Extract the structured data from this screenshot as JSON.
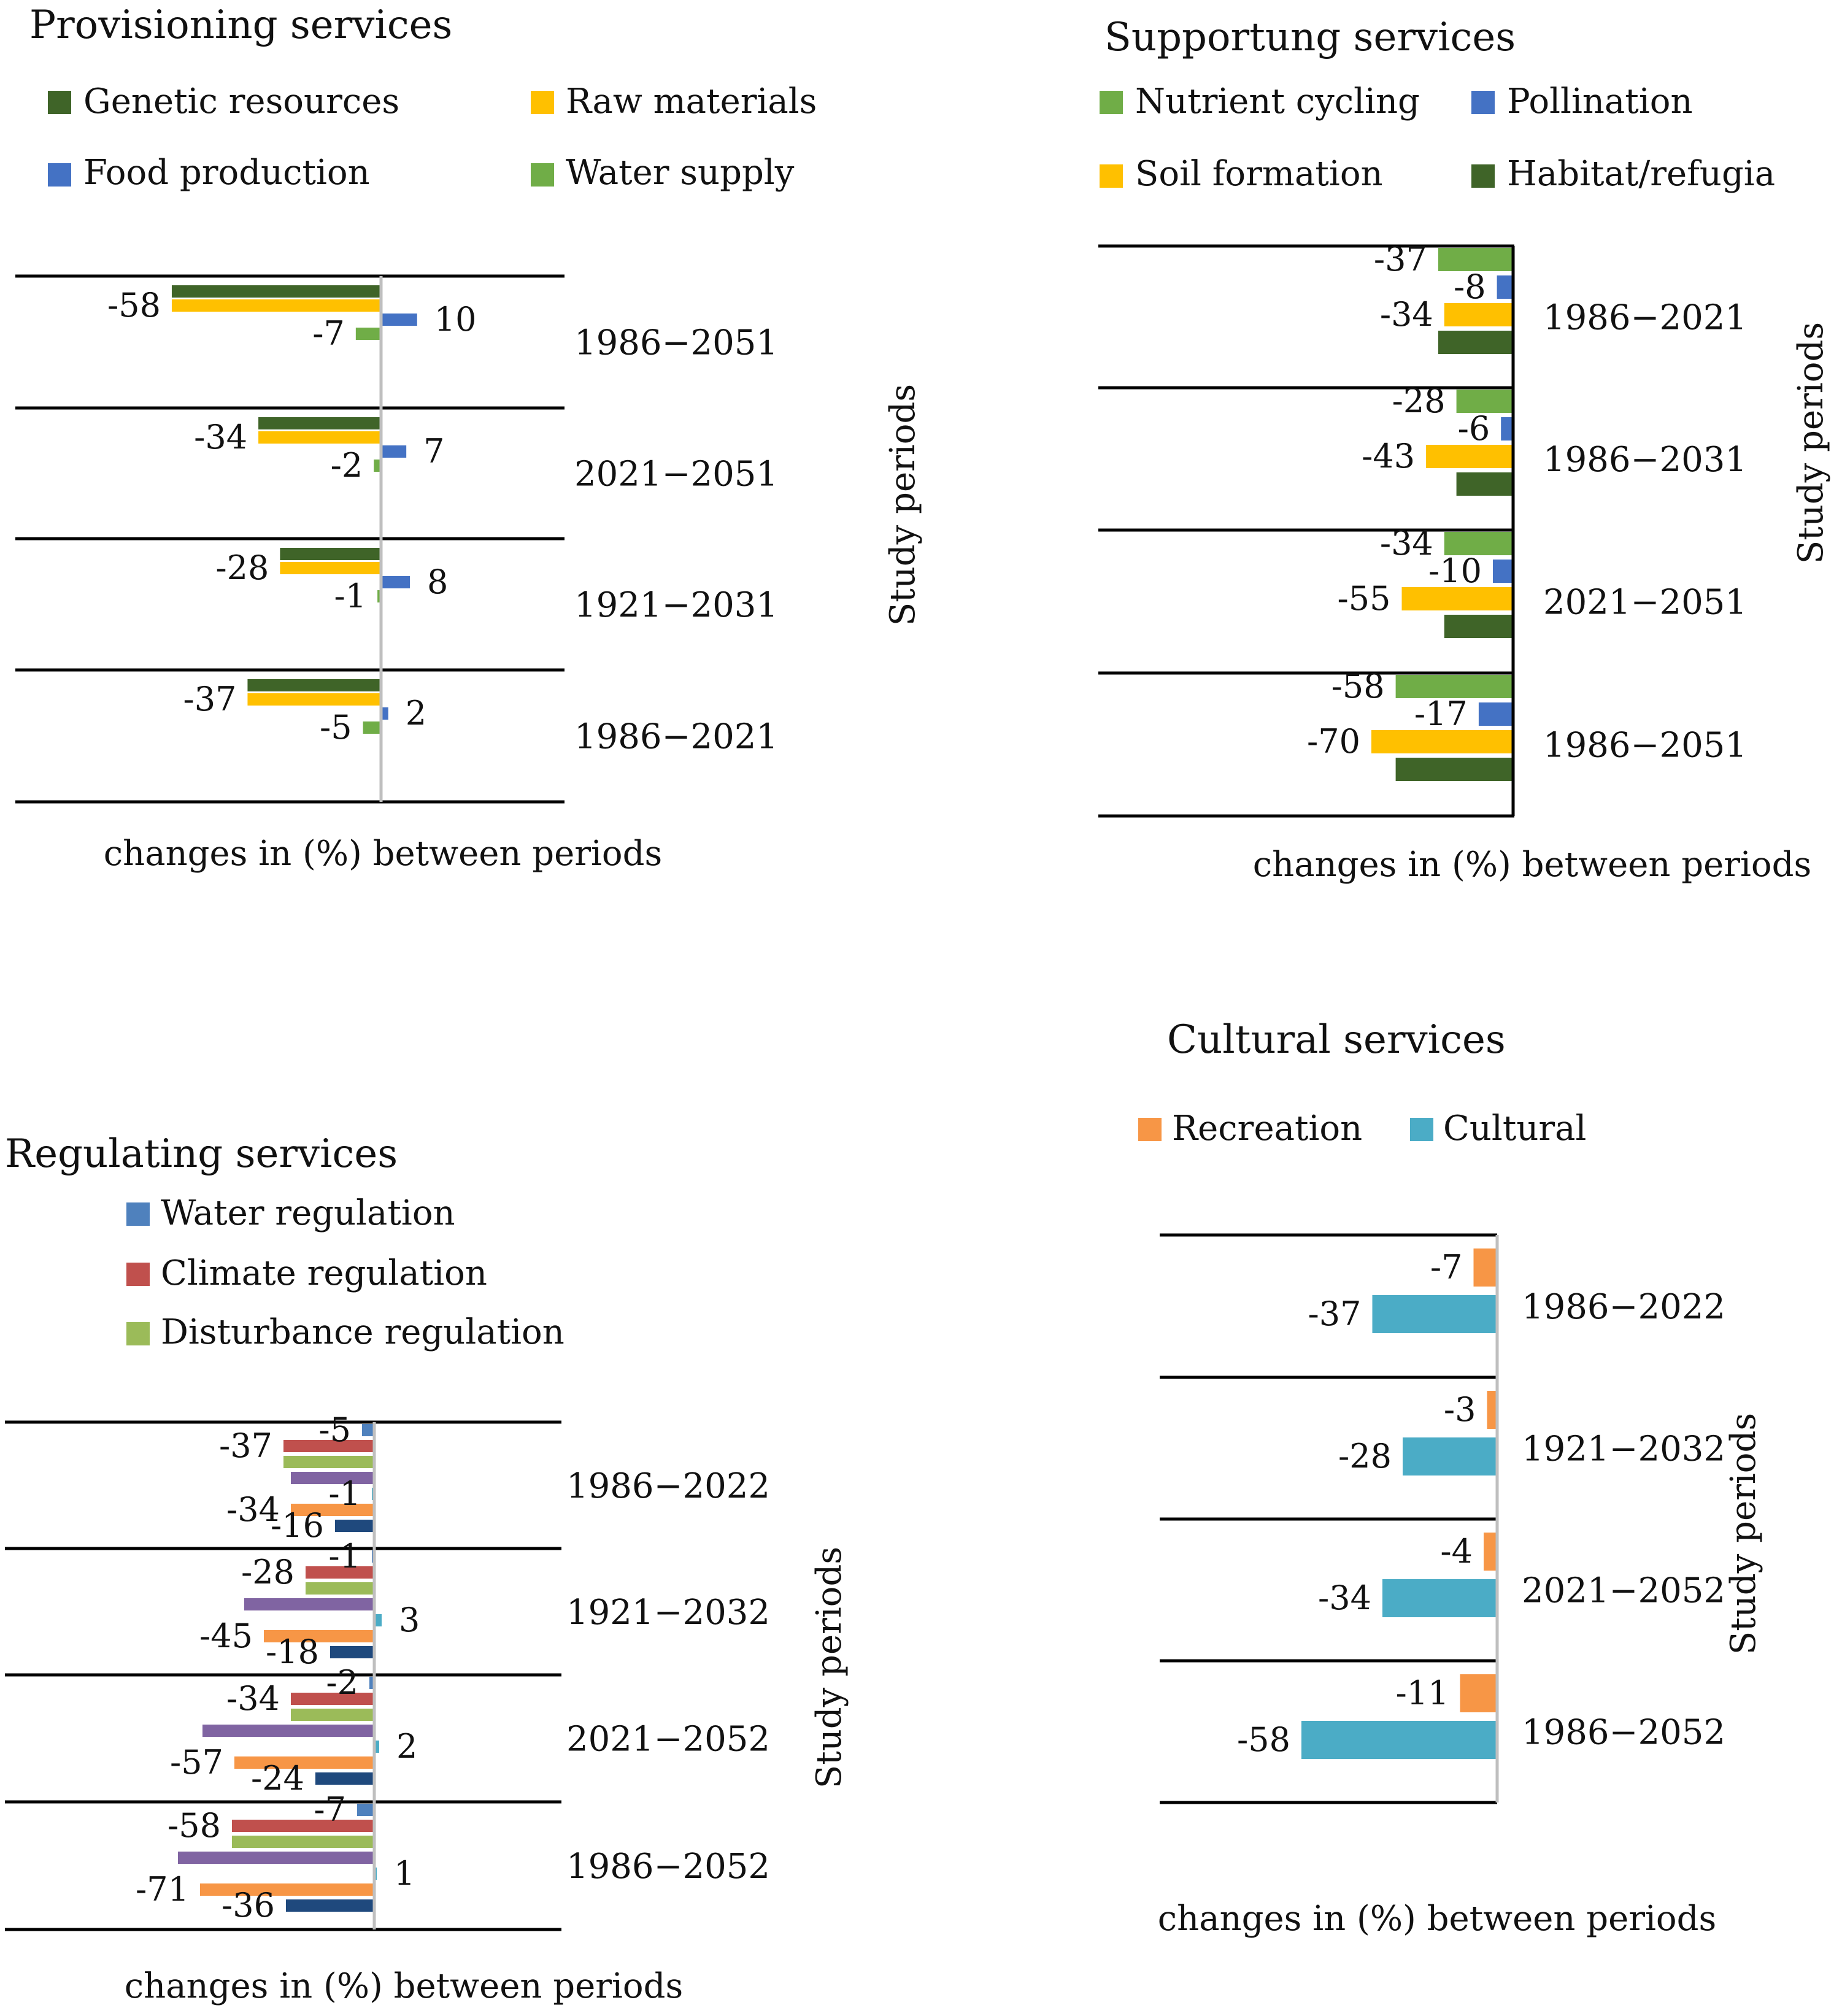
{
  "chart_data": [
    {
      "id": "provisioning",
      "type": "bar",
      "orientation": "horizontal",
      "title": "Provisioning services",
      "xlabel": "changes in (%) between periods",
      "ylabel": "Study periods",
      "categories": [
        "1986−2051",
        "2021−2051",
        "1921−2031",
        "1986−2021"
      ],
      "series": [
        {
          "name": "Genetic resources",
          "color": "#3f6428",
          "values": [
            -58,
            -34,
            -28,
            -37
          ],
          "labels": [
            "",
            "",
            "",
            ""
          ]
        },
        {
          "name": "Raw materials",
          "color": "#ffc000",
          "values": [
            -58,
            -34,
            -28,
            -37
          ],
          "labels": [
            "-58",
            "-34",
            "-28",
            "-37"
          ]
        },
        {
          "name": "Food production",
          "color": "#4472c4",
          "values": [
            10,
            7,
            8,
            2
          ],
          "labels": [
            "10",
            "7",
            "8",
            "2"
          ]
        },
        {
          "name": "Water supply",
          "color": "#70ad47",
          "values": [
            -7,
            -2,
            -1,
            -5
          ],
          "labels": [
            "-7",
            "-2",
            "-1",
            "-5"
          ]
        }
      ]
    },
    {
      "id": "supporting",
      "type": "bar",
      "orientation": "horizontal",
      "title": "Supportung services",
      "xlabel": "changes in (%) between periods",
      "ylabel": "Study periods",
      "categories": [
        "1986−2021",
        "1986−2031",
        "2021−2051",
        "1986−2051"
      ],
      "series": [
        {
          "name": "Nutrient cycling",
          "color": "#70ad47",
          "values": [
            -37,
            -28,
            -34,
            -58
          ],
          "labels": [
            "-37",
            "-28",
            "-34",
            "-58"
          ]
        },
        {
          "name": "Pollination",
          "color": "#4472c4",
          "values": [
            -8,
            -6,
            -10,
            -17
          ],
          "labels": [
            "-8",
            "-6",
            "-10",
            "-17"
          ]
        },
        {
          "name": "Soil formation",
          "color": "#ffc000",
          "values": [
            -34,
            -43,
            -55,
            -70
          ],
          "labels": [
            "-34",
            "-43",
            "-55",
            "-70"
          ]
        },
        {
          "name": "Habitat/refugia",
          "color": "#3f6428",
          "values": [
            -37,
            -28,
            -34,
            -58
          ],
          "labels": [
            "",
            "",
            "",
            ""
          ]
        }
      ]
    },
    {
      "id": "regulating",
      "type": "bar",
      "orientation": "horizontal",
      "title": "Regulating services",
      "xlabel": "changes in (%) between periods",
      "ylabel": "Study periods",
      "categories": [
        "1986−2022",
        "1921−2032",
        "2021−2052",
        "1986−2052"
      ],
      "series": [
        {
          "name": "Water regulation",
          "color": "#4f81bd",
          "values": [
            -5,
            -1,
            -2,
            -7
          ],
          "labels": [
            "-5",
            "-1",
            "-2",
            "-7"
          ]
        },
        {
          "name": "Climate regulation",
          "color": "#c0504d",
          "values": [
            -37,
            -28,
            -34,
            -58
          ],
          "labels": [
            "-37",
            "-28",
            "-34",
            "-58"
          ]
        },
        {
          "name": "Disturbance regulation",
          "color": "#9bbb59",
          "values": [
            -37,
            -28,
            -34,
            -58
          ],
          "labels": [
            "",
            "",
            "",
            ""
          ]
        },
        {
          "name": "",
          "color": "#8064a2",
          "values": [
            -34,
            -53,
            -70,
            -80
          ],
          "labels": [
            "",
            "",
            "",
            ""
          ]
        },
        {
          "name": "",
          "color": "#4bacc6",
          "values": [
            -1,
            3,
            2,
            1
          ],
          "labels": [
            "-1",
            "3",
            "2",
            "1"
          ]
        },
        {
          "name": "",
          "color": "#f79646",
          "values": [
            -34,
            -45,
            -57,
            -71
          ],
          "labels": [
            "-34",
            "-45",
            "-57",
            "-71"
          ]
        },
        {
          "name": "",
          "color": "#1f497d",
          "values": [
            -16,
            -18,
            -24,
            -36
          ],
          "labels": [
            "-16",
            "-18",
            "-24",
            "-36"
          ]
        }
      ]
    },
    {
      "id": "cultural",
      "type": "bar",
      "orientation": "horizontal",
      "title": "Cultural services",
      "xlabel": "changes in (%) between periods",
      "ylabel": "Study periods",
      "categories": [
        "1986−2022",
        "1921−2032",
        "2021−2052",
        "1986−2052"
      ],
      "series": [
        {
          "name": "Recreation",
          "color": "#f79646",
          "values": [
            -7,
            -3,
            -4,
            -11
          ],
          "labels": [
            "-7",
            "-3",
            "-4",
            "-11"
          ]
        },
        {
          "name": "Cultural",
          "color": "#4bacc6",
          "values": [
            -37,
            -28,
            -34,
            -58
          ],
          "labels": [
            "-37",
            "-28",
            "-34",
            "-58"
          ]
        }
      ]
    }
  ]
}
